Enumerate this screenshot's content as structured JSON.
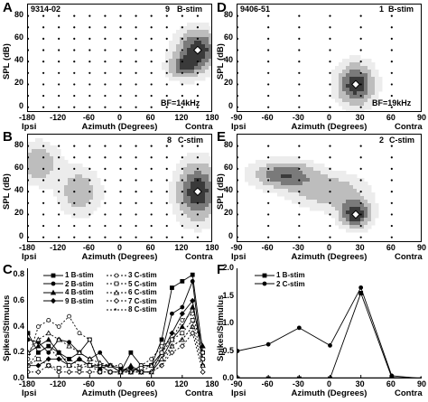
{
  "figure": {
    "letters": [
      "A",
      "B",
      "C",
      "D",
      "E",
      "F"
    ],
    "panel_A": {
      "unit_id": "9314-02",
      "unit_num": "9",
      "stim": "B-stim",
      "bf": "BF=14kHz"
    },
    "panel_B": {
      "unit_num": "8",
      "stim": "C-stim"
    },
    "panel_D": {
      "unit_id": "9406-51",
      "unit_num": "1",
      "stim": "B-stim",
      "bf": "BF=19kHz"
    },
    "panel_E": {
      "unit_num": "2",
      "stim": "C-stim"
    },
    "ylabel_spl": "SPL (dB)",
    "ylabel_spikes": "Spikes/Stimulus",
    "xlabel": "Azimuth (Degrees)",
    "xlabel_short": "Azimuth (Degrees)",
    "ipsi": "Ipsi",
    "contra": "Contra",
    "xticks_left": [
      "-180",
      "-120",
      "-60",
      "0",
      "60",
      "120",
      "180"
    ],
    "xticks_right": [
      "-90",
      "-60",
      "-30",
      "0",
      "30",
      "60",
      "90"
    ],
    "yticks_spl": [
      "80",
      "60",
      "40",
      "20",
      "0"
    ],
    "yticks_C": [
      "0.8",
      "0.6",
      "0.4",
      "0.2",
      "0.0"
    ],
    "yticks_F": [
      "2.0",
      "1.5",
      "1.0",
      "0.5",
      "0.0"
    ]
  },
  "chart_data": [
    {
      "type": "line",
      "panel": "C",
      "ylabel": "Spikes/Stimulus",
      "xlabel": "Azimuth (Degrees)",
      "ylim": [
        0,
        0.85
      ],
      "x": [
        -180,
        -160,
        -140,
        -120,
        -100,
        -80,
        -60,
        -40,
        -20,
        0,
        20,
        40,
        60,
        80,
        100,
        120,
        140,
        160
      ],
      "legend": [
        "1 B-stim",
        "2 B-stim",
        "4 B-stim",
        "9 B-stim",
        "3 C-stim",
        "5 C-stim",
        "6 C-stim",
        "7 C-stim",
        "8 C-stim"
      ],
      "series": [
        {
          "name": "1 B-stim",
          "values": [
            0.35,
            0.2,
            0.25,
            0.2,
            0.15,
            0.2,
            0.3,
            0.1,
            0.1,
            0.05,
            0.2,
            0.1,
            0.1,
            0.3,
            0.7,
            0.75,
            0.8,
            0.2
          ]
        },
        {
          "name": "2 B-stim",
          "values": [
            0.3,
            0.28,
            0.2,
            0.3,
            0.28,
            0.2,
            0.15,
            0.2,
            0.1,
            0.08,
            0.05,
            0.1,
            0.1,
            0.2,
            0.5,
            0.55,
            0.75,
            0.1
          ]
        },
        {
          "name": "4 B-stim",
          "values": [
            0.2,
            0.25,
            0.3,
            0.2,
            0.1,
            0.15,
            0.1,
            0.08,
            0.1,
            0.05,
            0.1,
            0.05,
            0.05,
            0.15,
            0.3,
            0.4,
            0.55,
            0.25
          ]
        },
        {
          "name": "9 B-stim",
          "values": [
            0.1,
            0.1,
            0.15,
            0.15,
            0.1,
            0.15,
            0.1,
            0.1,
            0.05,
            0.05,
            0.08,
            0.05,
            0.05,
            0.2,
            0.35,
            0.5,
            0.6,
            0.15
          ]
        },
        {
          "name": "3 C-stim",
          "values": [
            0.15,
            0.4,
            0.45,
            0.4,
            0.48,
            0.35,
            0.3,
            0.1,
            0.1,
            0.1,
            0.05,
            0.1,
            0.15,
            0.25,
            0.3,
            0.45,
            0.5,
            0.2
          ]
        },
        {
          "name": "5 C-stim",
          "values": [
            0.1,
            0.15,
            0.1,
            0.08,
            0.1,
            0.08,
            0.1,
            0.05,
            0.05,
            0.05,
            0.05,
            0.08,
            0.1,
            0.2,
            0.3,
            0.35,
            0.45,
            0.15
          ]
        },
        {
          "name": "6 C-stim",
          "values": [
            0.2,
            0.3,
            0.35,
            0.3,
            0.25,
            0.2,
            0.15,
            0.12,
            0.1,
            0.05,
            0.05,
            0.05,
            0.1,
            0.15,
            0.25,
            0.3,
            0.4,
            0.1
          ]
        },
        {
          "name": "7 C-stim",
          "values": [
            0.05,
            0.05,
            0.1,
            0.05,
            0.05,
            0.05,
            0.05,
            0.05,
            0.05,
            0.05,
            0.05,
            0.05,
            0.05,
            0.1,
            0.2,
            0.25,
            0.35,
            0.05
          ]
        },
        {
          "name": "8 C-stim",
          "values": [
            0.1,
            0.2,
            0.25,
            0.15,
            0.15,
            0.1,
            0.12,
            0.1,
            0.1,
            0.05,
            0.05,
            0.05,
            0.05,
            0.1,
            0.25,
            0.3,
            0.4,
            0.1
          ]
        }
      ]
    },
    {
      "type": "line",
      "panel": "F",
      "ylabel": "Spikes/Stimulus",
      "xlabel": "Azimuth (Degrees)",
      "ylim": [
        0,
        2.0
      ],
      "x": [
        -90,
        -60,
        -30,
        0,
        30,
        60,
        90
      ],
      "legend": [
        "1 B-stim",
        "2 C-stim"
      ],
      "series": [
        {
          "name": "1 B-stim",
          "values": [
            0,
            0,
            0,
            0,
            1.55,
            0.02,
            0
          ]
        },
        {
          "name": "2 C-stim",
          "values": [
            0.5,
            0.62,
            0.92,
            0.6,
            1.65,
            0.05,
            0
          ]
        }
      ]
    },
    {
      "type": "heatmap",
      "panel": "A",
      "xlim": [
        -180,
        180
      ],
      "ylim": [
        -5,
        90
      ],
      "peaks": [
        {
          "x": 150,
          "y": 50,
          "spread": [
            40,
            18
          ],
          "amp": 1
        },
        {
          "x": 120,
          "y": 35,
          "spread": [
            30,
            10
          ],
          "amp": 0.6
        }
      ]
    },
    {
      "type": "heatmap",
      "panel": "B",
      "xlim": [
        -180,
        180
      ],
      "ylim": [
        -5,
        90
      ],
      "peaks": [
        {
          "x": -160,
          "y": 65,
          "spread": [
            40,
            18
          ],
          "amp": 0.55
        },
        {
          "x": -80,
          "y": 40,
          "spread": [
            40,
            20
          ],
          "amp": 0.55
        },
        {
          "x": 150,
          "y": 40,
          "spread": [
            40,
            25
          ],
          "amp": 1
        }
      ]
    },
    {
      "type": "heatmap",
      "panel": "D",
      "xlim": [
        -90,
        90
      ],
      "ylim": [
        -5,
        90
      ],
      "peaks": [
        {
          "x": 25,
          "y": 20,
          "spread": [
            18,
            18
          ],
          "amp": 1
        }
      ]
    },
    {
      "type": "heatmap",
      "panel": "E",
      "xlim": [
        -90,
        90
      ],
      "ylim": [
        -5,
        90
      ],
      "peaks": [
        {
          "x": -45,
          "y": 55,
          "spread": [
            30,
            12
          ],
          "amp": 0.8
        },
        {
          "x": 25,
          "y": 20,
          "spread": [
            15,
            12
          ],
          "amp": 1
        },
        {
          "x": 0,
          "y": 40,
          "spread": [
            35,
            15
          ],
          "amp": 0.55
        }
      ]
    }
  ]
}
